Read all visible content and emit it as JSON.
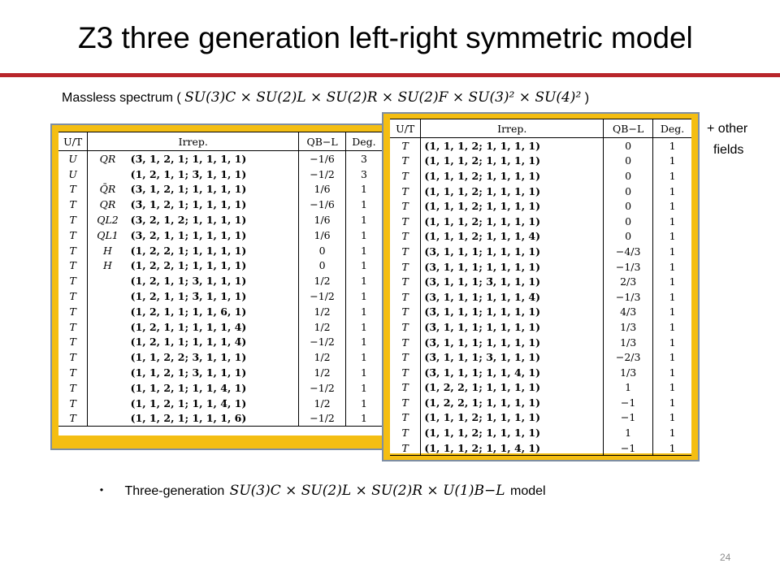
{
  "title": "Z3 three generation left-right symmetric model",
  "subtitle": {
    "prefix": "Massless spectrum (",
    "group": "SU(3)C × SU(2)L × SU(2)R × SU(2)F × SU(3)² × SU(4)²",
    "suffix": ")"
  },
  "other_fields": {
    "line1": "+ other",
    "line2": "fields"
  },
  "left_table": {
    "headers": [
      "U/T",
      "Irrep.",
      "QB−L",
      "Deg."
    ],
    "rows": [
      {
        "ut": "U",
        "label": "QR",
        "irrep": "(3̄, 1, 2, 1; 1, 1, 1, 1)",
        "q": "−1/6",
        "deg": "3"
      },
      {
        "ut": "U",
        "label": "",
        "irrep": "(1, 2, 1, 1; 3̄, 1, 1, 1)",
        "q": "−1/2",
        "deg": "3"
      },
      {
        "ut": "T",
        "label": "Q̄R",
        "irrep": "(3, 1, 2, 1; 1, 1, 1, 1)",
        "q": "1/6",
        "deg": "1"
      },
      {
        "ut": "T",
        "label": "QR",
        "irrep": "(3̄, 1, 2, 1; 1, 1, 1, 1)",
        "q": "−1/6",
        "deg": "1"
      },
      {
        "ut": "T",
        "label": "QL2",
        "irrep": "(3, 2, 1, 2; 1, 1, 1, 1)",
        "q": "1/6",
        "deg": "1"
      },
      {
        "ut": "T",
        "label": "QL1",
        "irrep": "(3, 2, 1, 1; 1, 1, 1, 1)",
        "q": "1/6",
        "deg": "1"
      },
      {
        "ut": "T",
        "label": "H",
        "irrep": "(1, 2, 2, 1; 1, 1, 1, 1)",
        "q": "0",
        "deg": "1"
      },
      {
        "ut": "T",
        "label": "H",
        "irrep": "(1, 2, 2, 1; 1, 1, 1, 1)",
        "q": "0",
        "deg": "1"
      },
      {
        "ut": "T",
        "label": "",
        "irrep": "(1, 2, 1, 1; 3, 1, 1, 1)",
        "q": "1/2",
        "deg": "1"
      },
      {
        "ut": "T",
        "label": "",
        "irrep": "(1, 2, 1, 1; 3̄, 1, 1, 1)",
        "q": "−1/2",
        "deg": "1"
      },
      {
        "ut": "T",
        "label": "",
        "irrep": "(1, 2, 1, 1; 1, 1, 6, 1)",
        "q": "1/2",
        "deg": "1"
      },
      {
        "ut": "T",
        "label": "",
        "irrep": "(1, 2, 1, 1; 1, 1, 1, 4)",
        "q": "1/2",
        "deg": "1"
      },
      {
        "ut": "T",
        "label": "",
        "irrep": "(1, 2, 1, 1; 1, 1, 1, 4̄)",
        "q": "−1/2",
        "deg": "1"
      },
      {
        "ut": "T",
        "label": "",
        "irrep": "(1, 1, 2, 2; 3, 1, 1, 1)",
        "q": "1/2",
        "deg": "1"
      },
      {
        "ut": "T",
        "label": "",
        "irrep": "(1, 1, 2, 1; 3, 1, 1, 1)",
        "q": "1/2",
        "deg": "1"
      },
      {
        "ut": "T",
        "label": "",
        "irrep": "(1, 1, 2, 1; 1, 1, 4, 1)",
        "q": "−1/2",
        "deg": "1"
      },
      {
        "ut": "T",
        "label": "",
        "irrep": "(1, 1, 2, 1; 1, 1, 4̄, 1)",
        "q": "1/2",
        "deg": "1"
      },
      {
        "ut": "T",
        "label": "",
        "irrep": "(1, 1, 2, 1; 1, 1, 1, 6)",
        "q": "−1/2",
        "deg": "1"
      }
    ]
  },
  "right_table": {
    "headers": [
      "U/T",
      "Irrep.",
      "QB−L",
      "Deg."
    ],
    "rows": [
      {
        "ut": "T",
        "irrep": "(1, 1, 1, 2; 1, 1, 1, 1)",
        "q": "0",
        "deg": "1"
      },
      {
        "ut": "T",
        "irrep": "(1, 1, 1, 2; 1, 1, 1, 1)",
        "q": "0",
        "deg": "1"
      },
      {
        "ut": "T",
        "irrep": "(1, 1, 1, 2; 1, 1, 1, 1)",
        "q": "0",
        "deg": "1"
      },
      {
        "ut": "T",
        "irrep": "(1, 1, 1, 2; 1, 1, 1, 1)",
        "q": "0",
        "deg": "1"
      },
      {
        "ut": "T",
        "irrep": "(1, 1, 1, 2; 1, 1, 1, 1)",
        "q": "0",
        "deg": "1"
      },
      {
        "ut": "T",
        "irrep": "(1, 1, 1, 2; 1, 1, 1, 1)",
        "q": "0",
        "deg": "1"
      },
      {
        "ut": "T",
        "irrep": "(1, 1, 1, 2; 1, 1, 1, 4)",
        "q": "0",
        "deg": "1"
      },
      {
        "ut": "T",
        "irrep": "(3, 1, 1, 1; 1, 1, 1, 1)",
        "q": "−4/3",
        "deg": "1"
      },
      {
        "ut": "T",
        "irrep": "(3, 1, 1, 1; 1, 1, 1, 1)",
        "q": "−1/3",
        "deg": "1"
      },
      {
        "ut": "T",
        "irrep": "(3, 1, 1, 1; 3̄, 1, 1, 1)",
        "q": "2/3",
        "deg": "1"
      },
      {
        "ut": "T",
        "irrep": "(3, 1, 1, 1; 1, 1, 1, 4̄)",
        "q": "−1/3",
        "deg": "1"
      },
      {
        "ut": "T",
        "irrep": "(3̄, 1, 1, 1; 1, 1, 1, 1)",
        "q": "4/3",
        "deg": "1"
      },
      {
        "ut": "T",
        "irrep": "(3̄, 1, 1, 1; 1, 1, 1, 1)",
        "q": "1/3",
        "deg": "1"
      },
      {
        "ut": "T",
        "irrep": "(3̄, 1, 1, 1; 1, 1, 1, 1)",
        "q": "1/3",
        "deg": "1"
      },
      {
        "ut": "T",
        "irrep": "(3̄, 1, 1, 1; 3, 1, 1, 1)",
        "q": "−2/3",
        "deg": "1"
      },
      {
        "ut": "T",
        "irrep": "(3̄, 1, 1, 1; 1, 1, 4, 1)",
        "q": "1/3",
        "deg": "1"
      },
      {
        "ut": "T",
        "irrep": "(1, 2, 2, 1; 1, 1, 1, 1)",
        "q": "1",
        "deg": "1"
      },
      {
        "ut": "T",
        "irrep": "(1, 2, 2, 1; 1, 1, 1, 1)",
        "q": "−1",
        "deg": "1"
      },
      {
        "ut": "T",
        "irrep": "(1, 1, 1, 2; 1, 1, 1, 1)",
        "q": "−1",
        "deg": "1"
      },
      {
        "ut": "T",
        "irrep": "(1, 1, 1, 2; 1, 1, 1, 1)",
        "q": "1",
        "deg": "1"
      },
      {
        "ut": "T",
        "irrep": "(1, 1, 1, 2; 1, 1, 4, 1)",
        "q": "−1",
        "deg": "1"
      }
    ]
  },
  "bullet": {
    "dot": "・",
    "prefix": "Three-generation",
    "group": "SU(3)C × SU(2)L × SU(2)R × U(1)B−L",
    "suffix": "model"
  },
  "page_number": "24",
  "colors": {
    "rule": "#b9252a",
    "panel": "#f4be12",
    "panel_border": "#7e8ea3"
  }
}
